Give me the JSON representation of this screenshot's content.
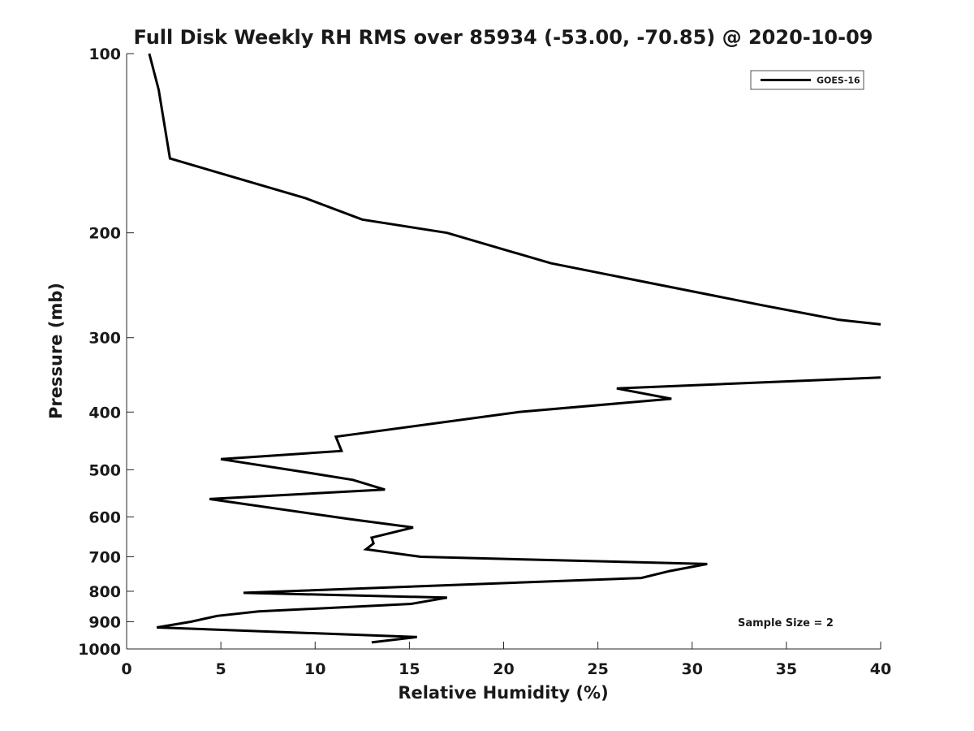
{
  "chart_data": {
    "type": "line",
    "title": "Full Disk Weekly RH RMS over 85934 (-53.00, -70.85) @ 2020-10-09",
    "xlabel": "Relative Humidity (%)",
    "ylabel": "Pressure (mb)",
    "xlim": [
      0,
      40
    ],
    "ylim": [
      100,
      1000
    ],
    "yscale": "log",
    "y_inverted": true,
    "xticks": [
      0,
      5,
      10,
      15,
      20,
      25,
      30,
      35,
      40
    ],
    "yticks": [
      100,
      200,
      300,
      400,
      500,
      600,
      700,
      800,
      900,
      1000
    ],
    "xtick_labels": [
      "0",
      "5",
      "10",
      "15",
      "20",
      "25",
      "30",
      "35",
      "40"
    ],
    "ytick_labels": [
      "100",
      "200",
      "300",
      "400",
      "500",
      "600",
      "700",
      "800",
      "900",
      "1000"
    ],
    "grid": false,
    "legend": {
      "position": "top-right",
      "entries": [
        "GOES-16"
      ]
    },
    "annotation": "Sample Size = 2",
    "series": [
      {
        "name": "GOES-16",
        "color": "#000000",
        "segments": [
          [
            [
              1.2,
              100
            ],
            [
              1.7,
              115
            ],
            [
              2.3,
              150
            ],
            [
              9.5,
              175
            ],
            [
              12.5,
              190
            ],
            [
              17.0,
              200
            ],
            [
              22.5,
              225
            ],
            [
              33.8,
              265
            ],
            [
              37.8,
              280
            ],
            [
              40.0,
              285
            ]
          ],
          [
            [
              40.0,
              350
            ],
            [
              26.0,
              365
            ],
            [
              28.9,
              380
            ],
            [
              20.8,
              400
            ],
            [
              11.1,
              440
            ],
            [
              11.4,
              465
            ],
            [
              5.0,
              480
            ],
            [
              9.5,
              505
            ],
            [
              12.0,
              520
            ],
            [
              13.7,
              540
            ],
            [
              4.4,
              560
            ],
            [
              11.8,
              605
            ],
            [
              15.2,
              625
            ],
            [
              13.0,
              650
            ],
            [
              13.1,
              665
            ],
            [
              12.7,
              680
            ],
            [
              15.6,
              700
            ],
            [
              30.8,
              720
            ],
            [
              28.8,
              740
            ],
            [
              27.3,
              760
            ],
            [
              6.2,
              805
            ],
            [
              17.0,
              820
            ],
            [
              15.1,
              840
            ],
            [
              7.0,
              865
            ],
            [
              4.8,
              880
            ],
            [
              3.4,
              900
            ],
            [
              1.6,
              920
            ],
            [
              15.4,
              955
            ],
            [
              13.0,
              975
            ]
          ]
        ]
      }
    ]
  }
}
